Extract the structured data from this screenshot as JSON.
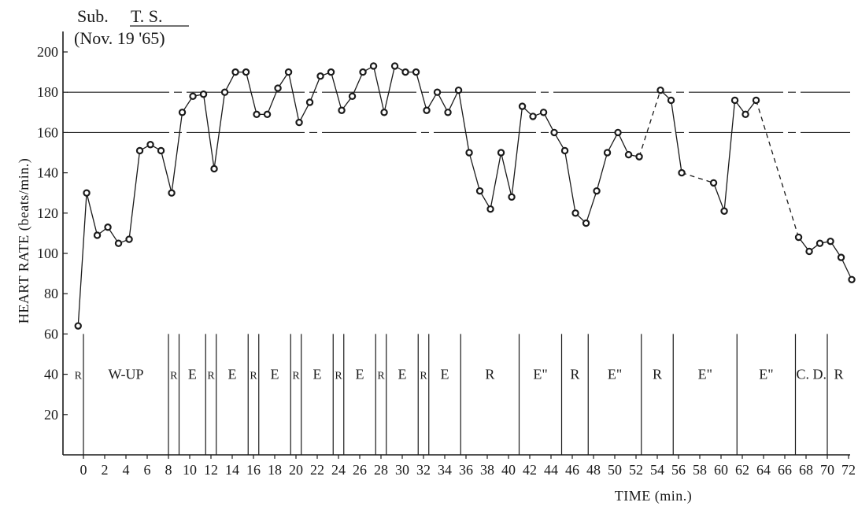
{
  "header": {
    "subject_prefix": "Sub.",
    "subject_initials": "T. S.",
    "date": "(Nov. 19 '65)"
  },
  "chart_data": {
    "type": "line",
    "xlabel": "TIME (min.)",
    "ylabel": "HEART RATE (beats/min.)",
    "xlim": [
      -1,
      73
    ],
    "ylim": [
      0,
      205
    ],
    "y_ticks": [
      20,
      40,
      60,
      80,
      100,
      120,
      140,
      160,
      180,
      200
    ],
    "x_ticks": [
      0,
      2,
      4,
      6,
      8,
      10,
      12,
      14,
      16,
      18,
      20,
      22,
      24,
      26,
      28,
      30,
      32,
      34,
      36,
      38,
      40,
      42,
      44,
      46,
      48,
      50,
      52,
      54,
      56,
      58,
      60,
      62,
      64,
      66,
      68,
      70,
      72
    ],
    "reference_lines": [
      {
        "y": 180,
        "style": "solid-with-dashed-segments"
      },
      {
        "y": 160,
        "style": "solid-with-dashed-segments"
      }
    ],
    "series": [
      {
        "points": [
          [
            -0.5,
            64
          ],
          [
            0.3,
            130
          ],
          [
            1.3,
            109
          ],
          [
            2.3,
            113
          ],
          [
            3.3,
            105
          ],
          [
            4.3,
            107
          ],
          [
            5.3,
            151
          ],
          [
            6.3,
            154
          ],
          [
            7.3,
            151
          ],
          [
            8.3,
            130
          ],
          [
            9.3,
            170
          ],
          [
            10.3,
            178
          ],
          [
            11.3,
            179
          ],
          [
            12.3,
            142
          ],
          [
            13.3,
            180
          ],
          [
            14.3,
            190
          ],
          [
            15.3,
            190
          ],
          [
            16.3,
            169
          ],
          [
            17.3,
            169
          ],
          [
            18.3,
            182
          ],
          [
            19.3,
            190
          ],
          [
            20.3,
            165
          ],
          [
            21.3,
            175
          ],
          [
            22.3,
            188
          ],
          [
            23.3,
            190
          ],
          [
            24.3,
            171
          ],
          [
            25.3,
            178
          ],
          [
            26.3,
            190
          ],
          [
            27.3,
            193
          ],
          [
            28.3,
            170
          ],
          [
            29.3,
            193
          ],
          [
            30.3,
            190
          ],
          [
            31.3,
            190
          ],
          [
            32.3,
            171
          ],
          [
            33.3,
            180
          ],
          [
            34.3,
            170
          ],
          [
            35.3,
            181
          ],
          [
            36.3,
            150
          ],
          [
            37.3,
            131
          ],
          [
            38.3,
            122
          ],
          [
            39.3,
            150
          ],
          [
            40.3,
            128
          ],
          [
            41.3,
            173
          ],
          [
            42.3,
            168
          ],
          [
            43.3,
            170
          ],
          [
            44.3,
            160
          ],
          [
            45.3,
            151
          ],
          [
            46.3,
            120
          ],
          [
            47.3,
            115
          ],
          [
            48.3,
            131
          ],
          [
            49.3,
            150
          ],
          [
            50.3,
            160
          ],
          [
            51.3,
            149
          ],
          [
            52.3,
            148
          ],
          [
            54.3,
            181
          ],
          [
            55.3,
            176
          ],
          [
            56.3,
            140
          ],
          [
            59.3,
            135
          ],
          [
            60.3,
            121
          ],
          [
            61.3,
            176
          ],
          [
            62.3,
            169
          ],
          [
            63.3,
            176
          ],
          [
            67.3,
            108
          ],
          [
            68.3,
            101
          ],
          [
            69.3,
            105
          ],
          [
            70.3,
            106
          ],
          [
            71.3,
            98
          ],
          [
            72.3,
            87
          ]
        ],
        "dashed_segments": [
          [
            52.3,
            54.3
          ],
          [
            56.3,
            59.3
          ],
          [
            63.3,
            67.3
          ]
        ]
      }
    ],
    "phases": [
      {
        "label": "R",
        "from": -1,
        "to": 0
      },
      {
        "label": "W-UP",
        "from": 0,
        "to": 8
      },
      {
        "label": "R",
        "from": 8,
        "to": 9
      },
      {
        "label": "E",
        "from": 9,
        "to": 11.5
      },
      {
        "label": "R",
        "from": 11.5,
        "to": 12.5
      },
      {
        "label": "E",
        "from": 12.5,
        "to": 15.5
      },
      {
        "label": "R",
        "from": 15.5,
        "to": 16.5
      },
      {
        "label": "E",
        "from": 16.5,
        "to": 19.5
      },
      {
        "label": "R",
        "from": 19.5,
        "to": 20.5
      },
      {
        "label": "E",
        "from": 20.5,
        "to": 23.5
      },
      {
        "label": "R",
        "from": 23.5,
        "to": 24.5
      },
      {
        "label": "E",
        "from": 24.5,
        "to": 27.5
      },
      {
        "label": "R",
        "from": 27.5,
        "to": 28.5
      },
      {
        "label": "E",
        "from": 28.5,
        "to": 31.5
      },
      {
        "label": "R",
        "from": 31.5,
        "to": 32.5
      },
      {
        "label": "E",
        "from": 32.5,
        "to": 35.5
      },
      {
        "label": "R",
        "from": 35.5,
        "to": 41
      },
      {
        "label": "E\"",
        "from": 41,
        "to": 45
      },
      {
        "label": "R",
        "from": 45,
        "to": 47.5
      },
      {
        "label": "E\"",
        "from": 47.5,
        "to": 52.5
      },
      {
        "label": "R",
        "from": 52.5,
        "to": 55.5
      },
      {
        "label": "E\"",
        "from": 55.5,
        "to": 61.5
      },
      {
        "label": "E\"",
        "from": 61.5,
        "to": 67
      },
      {
        "label": "C. D.",
        "from": 67,
        "to": 70
      },
      {
        "label": "R",
        "from": 70,
        "to": 73
      }
    ]
  }
}
